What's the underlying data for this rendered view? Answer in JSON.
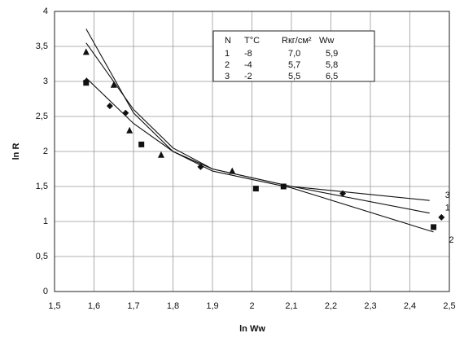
{
  "chart_data": {
    "type": "scatter",
    "x_label": "ln Ww",
    "y_label": "ln R",
    "xlim": [
      1.5,
      2.5
    ],
    "ylim": [
      0,
      4
    ],
    "grid": true,
    "xticks": [
      {
        "value": 1.5,
        "label": "1,5"
      },
      {
        "value": 1.6,
        "label": "1,6"
      },
      {
        "value": 1.7,
        "label": "1,7"
      },
      {
        "value": 1.8,
        "label": "1,8"
      },
      {
        "value": 1.9,
        "label": "1,9"
      },
      2,
      {
        "value": 2.1,
        "label": "2,1"
      },
      {
        "value": 2.2,
        "label": "2,2"
      },
      {
        "value": 2.3,
        "label": "2,3"
      },
      {
        "value": 2.4,
        "label": "2,4"
      },
      {
        "value": 2.5,
        "label": "2,5"
      }
    ],
    "yticks": [
      0,
      {
        "value": 0.5,
        "label": "0,5"
      },
      1,
      {
        "value": 1.5,
        "label": "1,5"
      },
      2,
      {
        "value": 2.5,
        "label": "2,5"
      },
      3,
      {
        "value": 3.5,
        "label": "3,5"
      },
      4
    ],
    "series": [
      {
        "marker": "diamond",
        "color": "#111111",
        "x": [
          1.58,
          1.64,
          1.68,
          1.87,
          2.23,
          2.48
        ],
        "values": [
          3.0,
          2.65,
          2.55,
          1.78,
          1.4,
          1.06
        ]
      },
      {
        "marker": "square",
        "color": "#111111",
        "x": [
          1.58,
          1.72,
          2.01,
          2.08,
          2.46
        ],
        "values": [
          2.98,
          2.1,
          1.47,
          1.5,
          0.92
        ]
      },
      {
        "marker": "triangle",
        "color": "#111111",
        "x": [
          1.58,
          1.65,
          1.69,
          1.77,
          1.95
        ],
        "values": [
          3.42,
          2.95,
          2.3,
          1.95,
          1.72
        ]
      }
    ],
    "trend_lines": [
      {
        "label": "1",
        "x": [
          1.58,
          1.7,
          1.8,
          1.9,
          2.1,
          2.45
        ],
        "values": [
          3.55,
          2.6,
          2.05,
          1.75,
          1.5,
          1.12
        ]
      },
      {
        "label": "2",
        "x": [
          1.58,
          1.7,
          1.8,
          1.9,
          2.1,
          2.46
        ],
        "values": [
          3.05,
          2.4,
          2.0,
          1.72,
          1.48,
          0.85
        ]
      },
      {
        "label": "3",
        "x": [
          1.58,
          1.7,
          1.8,
          1.9,
          2.1,
          2.45
        ],
        "values": [
          3.75,
          2.55,
          2.0,
          1.75,
          1.5,
          1.3
        ]
      }
    ],
    "legend_table": {
      "columns": [
        "N",
        "T°C",
        "Rкг/см²",
        "Ww"
      ],
      "rows": [
        [
          "1",
          "-8",
          "7,0",
          "5,9"
        ],
        [
          "2",
          "-4",
          "5,7",
          "5,8"
        ],
        [
          "3",
          "-2",
          "5,5",
          "6,5"
        ]
      ]
    }
  }
}
